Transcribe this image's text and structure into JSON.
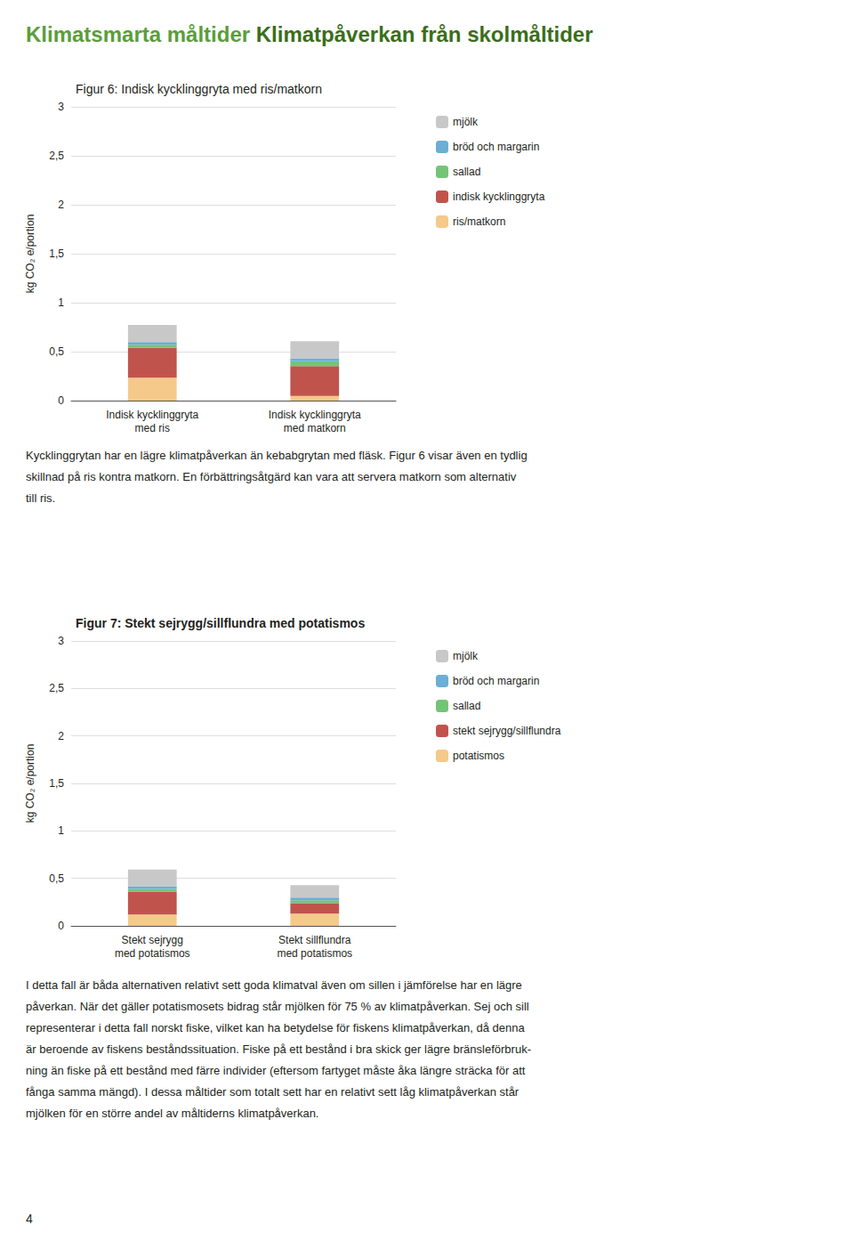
{
  "header": [
    {
      "text": "Klimatsmarta måltider ",
      "color": "#5a9e3a"
    },
    {
      "text": "Klimatpåverkan från skolmåltider",
      "color": "#3a6e1a"
    }
  ],
  "chart_data": [
    {
      "type": "bar",
      "title": "Figur 6: Indisk kycklinggryta med ris/matkorn",
      "categories": [
        "Indisk kycklinggryta\nmed ris",
        "Indisk kycklinggryta\nmed matkorn"
      ],
      "ylabel": "kg CO₂ e/portion",
      "ylim": [
        0,
        3
      ],
      "yticks": [
        0,
        {
          "value": 0.5,
          "label": "0,5"
        },
        1,
        {
          "value": 1.5,
          "label": "1,5"
        },
        2,
        {
          "value": 2.5,
          "label": "2,5"
        },
        3
      ],
      "grid": true,
      "stacked": true,
      "legend": "upper right",
      "series": [
        {
          "name": "ris/matkorn",
          "color": "#f5c98a",
          "values": [
            0.235,
            0.048
          ]
        },
        {
          "name": "indisk kycklinggryta",
          "color": "#c0544c",
          "values": [
            0.305,
            0.305
          ]
        },
        {
          "name": "sallad",
          "color": "#74c476",
          "values": [
            0.03,
            0.05
          ]
        },
        {
          "name": "bröd och margarin",
          "color": "#6baed6",
          "values": [
            0.028,
            0.028
          ]
        },
        {
          "name": "mjölk",
          "color": "#c8c8c8",
          "values": [
            0.175,
            0.175
          ]
        }
      ],
      "annotations": [
        "Kycklinggrytan har en lägre klimatpåverkan än kebabgrytan med fläsk. Figur 6 visar även en tydlig",
        "skillnad på ris kontra matkorn. En förbättringsåtgärd kan vara att servera matkorn som alternativ",
        "till ris."
      ]
    },
    {
      "type": "bar",
      "title": "Figur 7: Stekt sejrygg/sillflundra med potatismos",
      "categories": [
        "Stekt sejrygg\nmed potatismos",
        "Stekt sillflundra\nmed potatismos"
      ],
      "ylabel": "kg CO₂ e/portion",
      "ylim": [
        0,
        3
      ],
      "yticks": [
        0,
        {
          "value": 0.5,
          "label": "0,5"
        },
        1,
        {
          "value": 1.5,
          "label": "1,5"
        },
        2,
        {
          "value": 2.5,
          "label": "2,5"
        },
        3
      ],
      "grid": true,
      "stacked": true,
      "legend": "upper right",
      "series": [
        {
          "name": "potatismos",
          "color": "#f5c98a",
          "values": [
            0.12,
            0.13
          ]
        },
        {
          "name": "stekt sejrygg/sillflundra",
          "color": "#c0544c",
          "values": [
            0.24,
            0.11
          ]
        },
        {
          "name": "sallad",
          "color": "#74c476",
          "values": [
            0.03,
            0.03
          ]
        },
        {
          "name": "bröd och margarin",
          "color": "#6baed6",
          "values": [
            0.028,
            0.028
          ]
        },
        {
          "name": "mjölk",
          "color": "#c8c8c8",
          "values": [
            0.175,
            0.13
          ]
        }
      ],
      "annotations": [
        "I detta fall är båda alternativen relativt sett goda klimatval även om sillen i jämförelse har en lägre",
        "påverkan. När det gäller potatismosets bidrag står mjölken för 75 % av klimatpåverkan. Sej och sill",
        "representerar i detta fall norskt fiske, vilket kan ha betydelse för fiskens klimatpåverkan, då denna",
        "är beroende av fiskens beståndssituation. Fiske på ett bestånd i bra skick ger lägre bränsleförbruk-",
        "ning än fiske på ett bestånd med färre individer (eftersom fartyget måste åka längre sträcka för att",
        "fånga samma mängd). I dessa måltider som totalt sett har en relativt sett låg klimatpåverkan står",
        "mjölken för en större andel av måltiderns klimatpåverkan."
      ]
    }
  ],
  "page_number": "4"
}
